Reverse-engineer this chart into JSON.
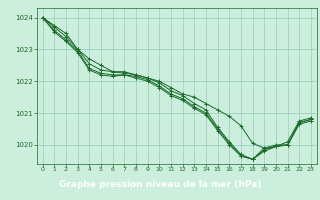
{
  "background_color": "#cceedd",
  "grid_color": "#99ccbb",
  "line_color": "#1a6b2a",
  "marker_color": "#1a6b2a",
  "xlabel": "Graphe pression niveau de la mer (hPa)",
  "label_fg": "#ffffff",
  "label_bg": "#2a6b3a",
  "ylim": [
    1019.4,
    1024.3
  ],
  "xlim": [
    -0.5,
    23.5
  ],
  "yticks": [
    1020,
    1021,
    1022,
    1023,
    1024
  ],
  "xticks": [
    0,
    1,
    2,
    3,
    4,
    5,
    6,
    7,
    8,
    9,
    10,
    11,
    12,
    13,
    14,
    15,
    16,
    17,
    18,
    19,
    20,
    21,
    22,
    23
  ],
  "series": [
    [
      1024.0,
      1023.75,
      1023.5,
      1023.0,
      1022.7,
      1022.5,
      1022.3,
      1022.3,
      1022.2,
      1022.1,
      1022.0,
      1021.8,
      1021.6,
      1021.5,
      1021.3,
      1021.1,
      1020.9,
      1020.6,
      1020.05,
      1019.9,
      1020.0,
      1020.0,
      1020.7,
      1020.8
    ],
    [
      1024.0,
      1023.7,
      1023.4,
      1023.0,
      1022.55,
      1022.35,
      1022.3,
      1022.25,
      1022.2,
      1022.1,
      1021.95,
      1021.7,
      1021.55,
      1021.3,
      1021.1,
      1020.55,
      1020.1,
      1019.7,
      1019.55,
      1019.9,
      1019.95,
      1020.1,
      1020.75,
      1020.85
    ],
    [
      1024.0,
      1023.6,
      1023.3,
      1022.95,
      1022.4,
      1022.25,
      1022.2,
      1022.2,
      1022.15,
      1022.05,
      1021.85,
      1021.6,
      1021.45,
      1021.2,
      1021.0,
      1020.5,
      1020.05,
      1019.65,
      1019.55,
      1019.85,
      1019.95,
      1020.0,
      1020.7,
      1020.8
    ],
    [
      1024.0,
      1023.55,
      1023.25,
      1022.9,
      1022.35,
      1022.2,
      1022.15,
      1022.2,
      1022.1,
      1022.0,
      1021.8,
      1021.55,
      1021.4,
      1021.15,
      1020.95,
      1020.45,
      1020.0,
      1019.65,
      1019.55,
      1019.8,
      1019.95,
      1020.0,
      1020.65,
      1020.75
    ]
  ]
}
